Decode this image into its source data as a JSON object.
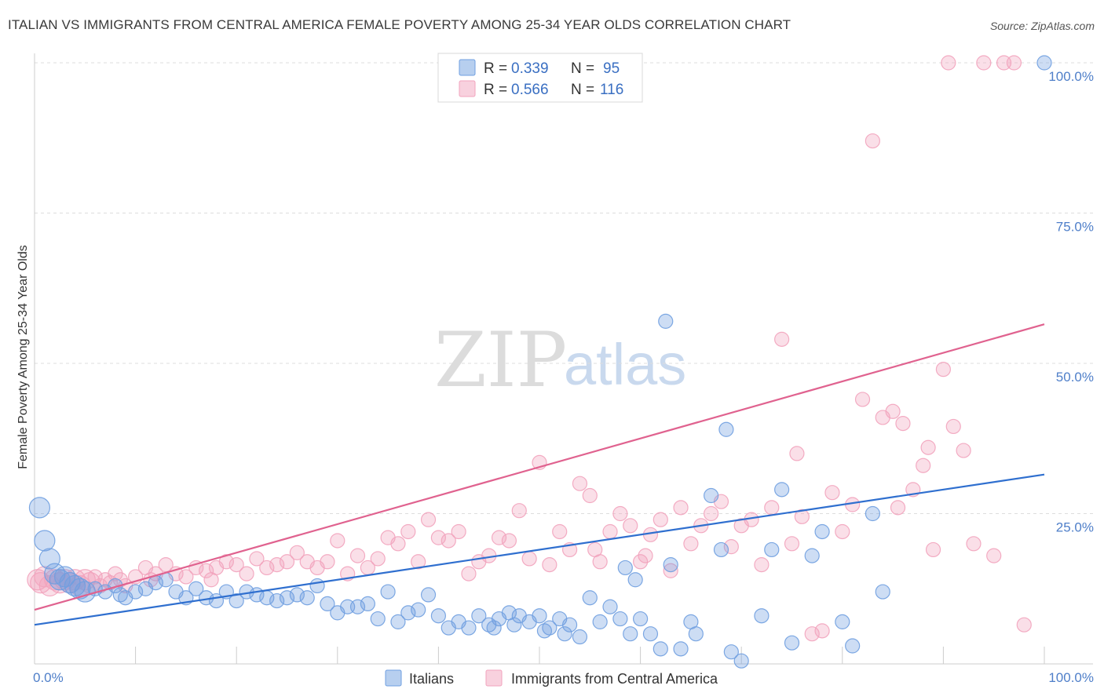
{
  "header": {
    "title": "ITALIAN VS IMMIGRANTS FROM CENTRAL AMERICA FEMALE POVERTY AMONG 25-34 YEAR OLDS CORRELATION CHART",
    "source": "Source: ZipAtlas.com"
  },
  "watermark": {
    "zip": "ZIP",
    "atlas": "atlas"
  },
  "colors": {
    "italians": "#6f9fe0",
    "italians_line": "#2f6fcf",
    "central_america": "#f2a3bd",
    "central_america_line": "#e0628f",
    "tick_label": "#4f7fc9"
  },
  "legend": {
    "rows": [
      {
        "r_label": "R = ",
        "r_value": "0.339",
        "n_label": "N = ",
        "n_value": "95"
      },
      {
        "r_label": "R = ",
        "r_value": "0.566",
        "n_label": "N = ",
        "n_value": "116"
      }
    ]
  },
  "bottom_legend": [
    "Italians",
    "Immigrants from Central America"
  ],
  "chart_data": {
    "type": "scatter",
    "title": "ITALIAN VS IMMIGRANTS FROM CENTRAL AMERICA FEMALE POVERTY AMONG 25-34 YEAR OLDS CORRELATION CHART",
    "xlabel": "",
    "ylabel": "Female Poverty Among 25-34 Year Olds",
    "xlim": [
      0,
      100
    ],
    "ylim": [
      0,
      102
    ],
    "x_tick_labels": [
      "0.0%",
      "100.0%"
    ],
    "y_ticks": [
      25,
      50,
      75,
      100
    ],
    "y_tick_labels": [
      "25.0%",
      "50.0%",
      "75.0%",
      "100.0%"
    ],
    "grid": true,
    "legend_position": "top-center",
    "series": [
      {
        "name": "Italians",
        "r": 0.339,
        "n": 95,
        "trend": [
          [
            0,
            6.5
          ],
          [
            100,
            31.5
          ]
        ],
        "points": [
          [
            0.5,
            26
          ],
          [
            1,
            20.5
          ],
          [
            1.5,
            17.5
          ],
          [
            2,
            15
          ],
          [
            2.5,
            14
          ],
          [
            3,
            14.5
          ],
          [
            3.5,
            13.5
          ],
          [
            4,
            13
          ],
          [
            4.5,
            12.5
          ],
          [
            5,
            12
          ],
          [
            6,
            12.5
          ],
          [
            7,
            12
          ],
          [
            8,
            13
          ],
          [
            8.5,
            11.5
          ],
          [
            9,
            11
          ],
          [
            10,
            12
          ],
          [
            11,
            12.5
          ],
          [
            12,
            13.5
          ],
          [
            13,
            14
          ],
          [
            14,
            12
          ],
          [
            15,
            11
          ],
          [
            16,
            12.5
          ],
          [
            17,
            11
          ],
          [
            18,
            10.5
          ],
          [
            19,
            12
          ],
          [
            20,
            10.5
          ],
          [
            21,
            12
          ],
          [
            22,
            11.5
          ],
          [
            23,
            11
          ],
          [
            24,
            10.5
          ],
          [
            25,
            11
          ],
          [
            26,
            11.5
          ],
          [
            27,
            11
          ],
          [
            28,
            13
          ],
          [
            29,
            10
          ],
          [
            30,
            8.5
          ],
          [
            31,
            9.5
          ],
          [
            32,
            9.5
          ],
          [
            33,
            10
          ],
          [
            34,
            7.5
          ],
          [
            35,
            12
          ],
          [
            36,
            7
          ],
          [
            37,
            8.5
          ],
          [
            38,
            9
          ],
          [
            39,
            11.5
          ],
          [
            40,
            8
          ],
          [
            41,
            6
          ],
          [
            42,
            7
          ],
          [
            43,
            6
          ],
          [
            44,
            8
          ],
          [
            45,
            6.5
          ],
          [
            46,
            7.5
          ],
          [
            47,
            8.5
          ],
          [
            48,
            8
          ],
          [
            49,
            7
          ],
          [
            50,
            8
          ],
          [
            51,
            6
          ],
          [
            52,
            7.5
          ],
          [
            53,
            6.5
          ],
          [
            54,
            4.5
          ],
          [
            55,
            11
          ],
          [
            56,
            7
          ],
          [
            57,
            9.5
          ],
          [
            58,
            7.5
          ],
          [
            58.5,
            16
          ],
          [
            59,
            5
          ],
          [
            59.5,
            14
          ],
          [
            60,
            7.5
          ],
          [
            61,
            5
          ],
          [
            62,
            2.5
          ],
          [
            62.5,
            57
          ],
          [
            63,
            16.5
          ],
          [
            64,
            2.5
          ],
          [
            65,
            7
          ],
          [
            65.5,
            5
          ],
          [
            67,
            28
          ],
          [
            68,
            19
          ],
          [
            68.5,
            39
          ],
          [
            69,
            2
          ],
          [
            70,
            0.5
          ],
          [
            72,
            8
          ],
          [
            73,
            19
          ],
          [
            74,
            29
          ],
          [
            75,
            3.5
          ],
          [
            77,
            18
          ],
          [
            78,
            22
          ],
          [
            80,
            7
          ],
          [
            81,
            3
          ],
          [
            83,
            25
          ],
          [
            84,
            12
          ],
          [
            100,
            100
          ],
          [
            45.5,
            6
          ],
          [
            47.5,
            6.5
          ],
          [
            50.5,
            5.5
          ],
          [
            52.5,
            5
          ]
        ]
      },
      {
        "name": "Immigrants from Central America",
        "r": 0.566,
        "n": 116,
        "trend": [
          [
            0,
            9
          ],
          [
            100,
            56.5
          ]
        ],
        "points": [
          [
            0.3,
            14
          ],
          [
            0.6,
            13.5
          ],
          [
            1,
            14.5
          ],
          [
            1.5,
            13
          ],
          [
            2,
            14
          ],
          [
            2.5,
            13.5
          ],
          [
            3,
            14
          ],
          [
            3.5,
            13.5
          ],
          [
            4,
            14
          ],
          [
            4.5,
            13
          ],
          [
            5,
            14
          ],
          [
            5.5,
            13.5
          ],
          [
            6,
            14.5
          ],
          [
            6.5,
            13
          ],
          [
            7,
            14
          ],
          [
            7.5,
            13.5
          ],
          [
            8,
            15
          ],
          [
            8.5,
            14
          ],
          [
            9,
            13
          ],
          [
            10,
            14.5
          ],
          [
            11,
            16
          ],
          [
            11.5,
            14
          ],
          [
            12,
            15
          ],
          [
            13,
            16.5
          ],
          [
            14,
            15
          ],
          [
            15,
            14.5
          ],
          [
            16,
            16
          ],
          [
            17,
            15.5
          ],
          [
            17.5,
            14
          ],
          [
            18,
            16
          ],
          [
            19,
            17
          ],
          [
            20,
            16.5
          ],
          [
            21,
            15
          ],
          [
            22,
            17.5
          ],
          [
            23,
            16
          ],
          [
            24,
            16.5
          ],
          [
            25,
            17
          ],
          [
            26,
            18.5
          ],
          [
            27,
            17
          ],
          [
            28,
            16
          ],
          [
            29,
            17
          ],
          [
            30,
            20.5
          ],
          [
            31,
            15
          ],
          [
            32,
            18
          ],
          [
            33,
            16
          ],
          [
            34,
            17.5
          ],
          [
            35,
            21
          ],
          [
            36,
            20
          ],
          [
            37,
            22
          ],
          [
            38,
            17
          ],
          [
            39,
            24
          ],
          [
            40,
            21
          ],
          [
            41,
            20.5
          ],
          [
            42,
            22
          ],
          [
            43,
            15
          ],
          [
            44,
            17
          ],
          [
            45,
            18
          ],
          [
            46,
            21
          ],
          [
            47,
            20.5
          ],
          [
            48,
            25.5
          ],
          [
            49,
            17.5
          ],
          [
            50,
            33.5
          ],
          [
            51,
            16.5
          ],
          [
            52,
            22
          ],
          [
            53,
            19
          ],
          [
            54,
            30
          ],
          [
            55,
            28
          ],
          [
            55.5,
            19
          ],
          [
            56,
            17
          ],
          [
            57,
            22
          ],
          [
            58,
            25
          ],
          [
            59,
            23
          ],
          [
            60,
            17
          ],
          [
            60.5,
            18
          ],
          [
            61,
            21.5
          ],
          [
            62,
            24
          ],
          [
            63,
            15.5
          ],
          [
            64,
            26
          ],
          [
            65,
            20
          ],
          [
            66,
            23
          ],
          [
            67,
            25
          ],
          [
            68,
            27
          ],
          [
            69,
            19.5
          ],
          [
            70,
            23
          ],
          [
            71,
            24
          ],
          [
            72,
            16.5
          ],
          [
            73,
            26
          ],
          [
            74,
            54
          ],
          [
            75,
            20
          ],
          [
            75.5,
            35
          ],
          [
            76,
            24.5
          ],
          [
            77,
            5
          ],
          [
            78,
            5.5
          ],
          [
            79,
            28.5
          ],
          [
            80,
            22
          ],
          [
            81,
            26.5
          ],
          [
            82,
            44
          ],
          [
            83,
            87
          ],
          [
            84,
            41
          ],
          [
            85,
            42
          ],
          [
            86,
            40
          ],
          [
            87,
            29
          ],
          [
            88,
            33
          ],
          [
            89,
            19
          ],
          [
            90,
            49
          ],
          [
            91,
            39.5
          ],
          [
            92,
            35.5
          ],
          [
            93,
            20
          ],
          [
            95,
            18
          ],
          [
            97,
            100
          ],
          [
            98,
            6.5
          ],
          [
            90.5,
            100
          ],
          [
            85.5,
            26
          ],
          [
            94,
            100
          ],
          [
            96,
            100
          ],
          [
            88.5,
            36
          ]
        ]
      }
    ]
  }
}
